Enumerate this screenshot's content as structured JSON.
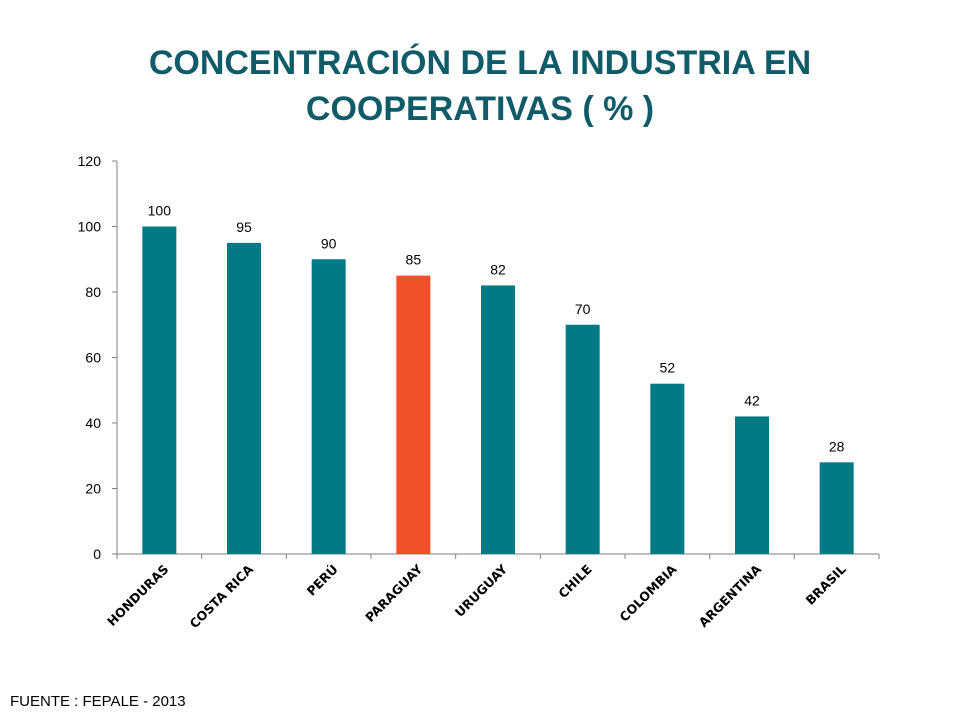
{
  "title": {
    "line1": "CONCENTRACIÓN DE LA INDUSTRIA EN",
    "line2": "COOPERATIVAS ( % )"
  },
  "source": "FUENTE : FEPALE - 2013",
  "colors": {
    "title": "#0F5C68",
    "bar": "#007B86",
    "highlight": "#F0502A",
    "axis": "#808080"
  },
  "chart_data": {
    "type": "bar",
    "categories": [
      "HONDURAS",
      "COSTA RICA",
      "PERÚ",
      "PARAGUAY",
      "URUGUAY",
      "CHILE",
      "COLOMBIA",
      "ARGENTINA",
      "BRASIL"
    ],
    "values": [
      100,
      95,
      90,
      85,
      82,
      70,
      52,
      42,
      28
    ],
    "highlight_category": "PARAGUAY",
    "ylim": [
      0,
      120
    ],
    "yticks": [
      0,
      20,
      40,
      60,
      80,
      100,
      120
    ],
    "grid": false,
    "legend": "none",
    "data_labels": true
  }
}
